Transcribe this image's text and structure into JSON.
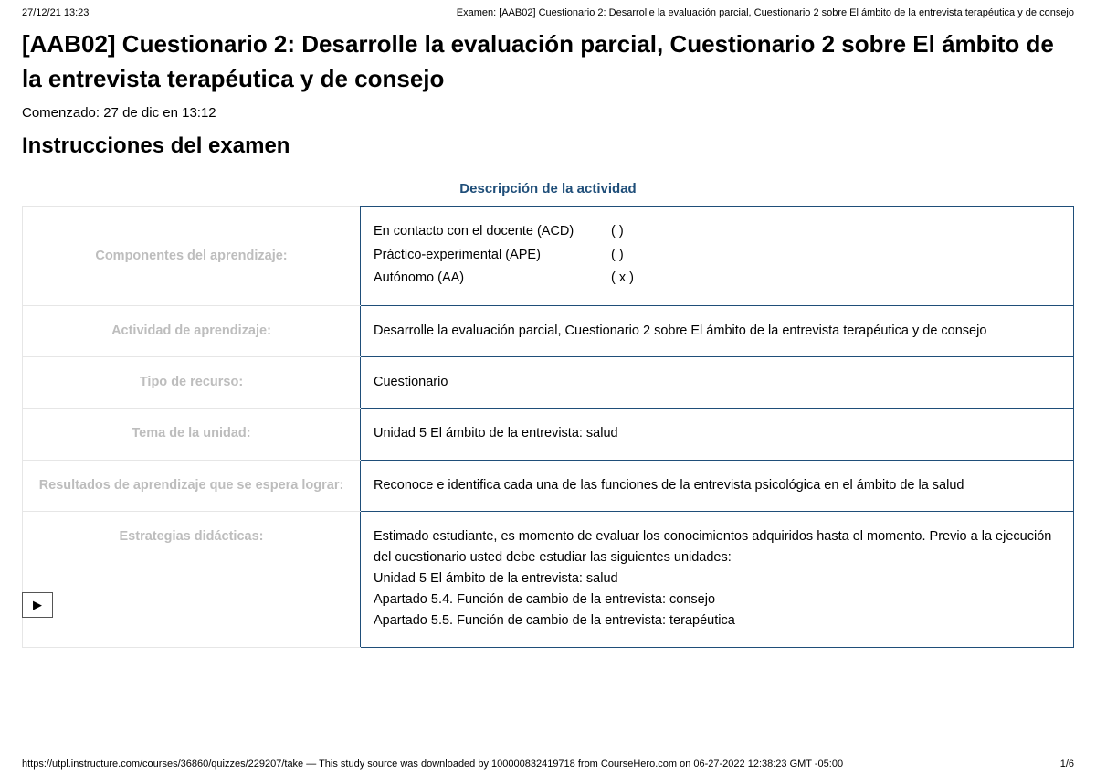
{
  "header": {
    "datetime": "27/12/21 13:23",
    "doc_title": "Examen: [AAB02] Cuestionario 2: Desarrolle la evaluación parcial, Cuestionario 2 sobre El ámbito de la entrevista terapéutica y de consejo"
  },
  "page": {
    "title": "[AAB02] Cuestionario 2: Desarrolle la evaluación parcial, Cuestionario 2 sobre El ámbito de la entrevista terapéutica y de consejo",
    "started": "Comenzado: 27 de dic en 13:12",
    "instructions_heading": "Instrucciones del examen"
  },
  "table": {
    "caption": "Descripción de la actividad",
    "rows": {
      "componentes": {
        "label": "Componentes del aprendizaje:",
        "items": [
          {
            "name": "En contacto con el docente (ACD)",
            "check": "(    )"
          },
          {
            "name": "Práctico-experimental (APE)",
            "check": "(    )"
          },
          {
            "name": "Autónomo (AA)",
            "check": "( x )"
          }
        ]
      },
      "actividad": {
        "label": "Actividad de aprendizaje:",
        "value": "Desarrolle la evaluación parcial, Cuestionario 2 sobre El ámbito de la entrevista terapéutica y de consejo"
      },
      "tipo": {
        "label": "Tipo de recurso:",
        "value": "Cuestionario"
      },
      "tema": {
        "label": "Tema de la unidad:",
        "value": "Unidad 5 El ámbito de la entrevista: salud"
      },
      "resultados": {
        "label": "Resultados de aprendizaje que se espera lograr:",
        "value": "Reconoce e identifica cada una de las funciones de la entrevista psicológica en el ámbito de la salud"
      },
      "estrategias": {
        "label": "Estrategias didácticas:",
        "lines": [
          "Estimado estudiante, es momento de evaluar los conocimientos adquiridos hasta el momento. Previo a la ejecución del cuestionario usted debe estudiar las siguientes unidades:",
          "Unidad 5 El ámbito de la entrevista: salud",
          "Apartado 5.4. Función de cambio de la entrevista: consejo",
          "Apartado 5.5. Función de cambio de la entrevista: terapéutica"
        ]
      }
    }
  },
  "widget": {
    "play_glyph": "▶"
  },
  "footer": {
    "left": "https://utpl.instructure.com/courses/36860/quizzes/229207/take — This study source was downloaded by 100000832419718 from CourseHero.com on 06-27-2022 12:38:23 GMT -05:00",
    "page": "1/6"
  },
  "colors": {
    "accent": "#1f4e79",
    "muted_label": "#bdbdbd",
    "border_light": "#e6e6e6"
  }
}
